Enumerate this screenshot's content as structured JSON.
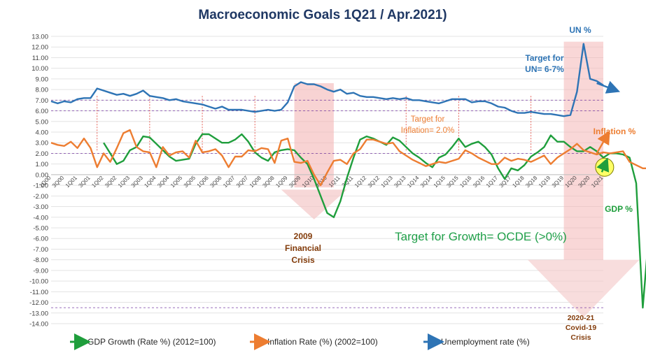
{
  "chart_data": {
    "type": "line",
    "title": "Macroeconomic Goals 1Q21 / Apr.2021)",
    "yticks": [
      "13.00",
      "12.00",
      "11.00",
      "10.00",
      "9.00",
      "8.00",
      "7.00",
      "6.00",
      "5.00",
      "4.00",
      "3.00",
      "2.00",
      "1.00",
      "0.00",
      "-1.00",
      "-2.00",
      "-3.00",
      "-4.00",
      "-5.00",
      "-6.00",
      "-7.00",
      "-8.00",
      "-9.00",
      "-10.00",
      "-11.00",
      "-12.00",
      "-13.00",
      "-14.00"
    ],
    "ylim": [
      -14,
      13
    ],
    "xticks": [
      "1Q00",
      "3Q00",
      "1Q01",
      "3Q01",
      "1Q02",
      "3Q02",
      "1Q03",
      "3Q03",
      "1Q04",
      "3Q04",
      "1Q05",
      "3Q05",
      "1Q06",
      "3Q06",
      "1Q07",
      "3Q07",
      "1Q08",
      "3Q08",
      "1Q09",
      "3Q09",
      "1Q10",
      "3Q10",
      "1Q11",
      "3Q11",
      "1Q12",
      "3Q12",
      "1Q13",
      "3Q13",
      "1Q14",
      "3Q14",
      "1Q15",
      "3Q15",
      "1Q16",
      "3Q16",
      "1Q17",
      "3Q17",
      "1Q18",
      "3Q18",
      "1Q19",
      "3Q19",
      "1Q20",
      "3Q20",
      "1Q21"
    ],
    "grid": true,
    "legend_position": "bottom",
    "series": [
      {
        "name": "GDP Growth (Rate %) (2012=100)",
        "color": "#1f9e3c",
        "values": [
          null,
          null,
          null,
          null,
          null,
          null,
          null,
          null,
          3.0,
          2.0,
          1.0,
          1.3,
          2.3,
          2.6,
          3.6,
          3.5,
          2.9,
          2.3,
          1.7,
          1.3,
          1.4,
          1.5,
          2.9,
          3.8,
          3.8,
          3.4,
          3.0,
          3.0,
          3.3,
          3.8,
          3.1,
          2.1,
          1.6,
          1.3,
          2.1,
          2.3,
          2.4,
          2.3,
          1.6,
          1.0,
          -0.4,
          -2.0,
          -3.6,
          -4.0,
          -2.5,
          -0.3,
          1.6,
          3.3,
          3.6,
          3.4,
          3.1,
          2.8,
          3.5,
          3.2,
          2.6,
          2.0,
          1.6,
          1.1,
          0.7,
          1.6,
          1.9,
          2.6,
          3.4,
          2.6,
          2.9,
          3.1,
          2.6,
          1.9,
          0.6,
          -0.4,
          0.6,
          0.4,
          0.9,
          1.7,
          2.1,
          2.6,
          3.7,
          3.1,
          3.1,
          2.6,
          2.2,
          2.2,
          2.6,
          2.2,
          1.6,
          2.0,
          2.0,
          1.9,
          1.6,
          -0.8,
          -12.5,
          -5.0,
          -3.0,
          -0.5,
          0.3
        ]
      },
      {
        "name": "Inflation Rate (%) (2002=100)",
        "color": "#ed7d31",
        "values": [
          3.0,
          2.8,
          2.7,
          3.1,
          2.5,
          3.4,
          2.5,
          0.7,
          2.0,
          1.2,
          2.5,
          3.9,
          4.2,
          2.6,
          2.2,
          2.1,
          0.7,
          2.6,
          1.8,
          2.1,
          2.2,
          1.6,
          3.2,
          2.1,
          2.2,
          2.4,
          1.8,
          0.7,
          1.7,
          1.7,
          2.3,
          2.2,
          2.5,
          2.4,
          1.1,
          3.2,
          3.4,
          1.2,
          1.1,
          1.3,
          0.0,
          -1.0,
          0.2,
          1.3,
          1.4,
          1.0,
          2.0,
          2.4,
          3.3,
          3.3,
          3.1,
          2.9,
          3.0,
          2.2,
          1.8,
          1.4,
          1.1,
          0.8,
          1.0,
          1.2,
          1.1,
          1.3,
          1.5,
          2.3,
          2.0,
          1.6,
          1.3,
          1.0,
          1.0,
          1.6,
          1.3,
          1.5,
          1.4,
          1.2,
          1.5,
          1.8,
          1.0,
          1.6,
          2.0,
          2.4,
          2.9,
          2.3,
          2.1,
          1.9,
          2.1,
          2.0,
          2.1,
          2.2,
          1.2,
          0.9,
          0.6,
          0.6,
          1.5,
          2.0
        ]
      },
      {
        "name": "Unemployment rate (%)",
        "color": "#2e74b5",
        "values": [
          6.9,
          6.7,
          6.9,
          6.8,
          7.1,
          7.2,
          7.2,
          8.1,
          7.9,
          7.7,
          7.5,
          7.6,
          7.4,
          7.6,
          7.9,
          7.4,
          7.3,
          7.2,
          7.0,
          7.1,
          6.9,
          6.8,
          6.7,
          6.6,
          6.4,
          6.2,
          6.4,
          6.1,
          6.1,
          6.1,
          6.0,
          5.9,
          6.0,
          6.1,
          6.0,
          6.1,
          6.8,
          8.3,
          8.7,
          8.5,
          8.5,
          8.3,
          8.0,
          7.8,
          8.0,
          7.6,
          7.7,
          7.4,
          7.3,
          7.3,
          7.2,
          7.1,
          7.2,
          7.1,
          7.2,
          7.0,
          7.0,
          6.9,
          6.8,
          6.7,
          6.9,
          7.1,
          7.1,
          7.1,
          6.8,
          6.9,
          6.9,
          6.7,
          6.4,
          6.3,
          6.0,
          5.8,
          5.8,
          5.9,
          5.8,
          5.7,
          5.7,
          5.6,
          5.5,
          5.6,
          7.8,
          12.3,
          9.0,
          8.8,
          8.4
        ]
      }
    ],
    "annotations": {
      "un_label": "UN %",
      "target_un_line1": "Target for",
      "target_un_line2": "UN= 6-7%",
      "target_inflation_line1": "Target for",
      "target_inflation_line2": "Inflation= 2.0%",
      "inflation_label": "Inflation %",
      "gdp_label": "GDP %",
      "growth_target": "Target for Growth=  OCDE (>0%)",
      "crisis2009_line1": "2009",
      "crisis2009_line2": "Financial",
      "crisis2009_line3": "Crisis",
      "crisis2020_line1": "2020-21",
      "crisis2020_line2": "Covid-19",
      "crisis2020_line3": "Crisis"
    }
  }
}
